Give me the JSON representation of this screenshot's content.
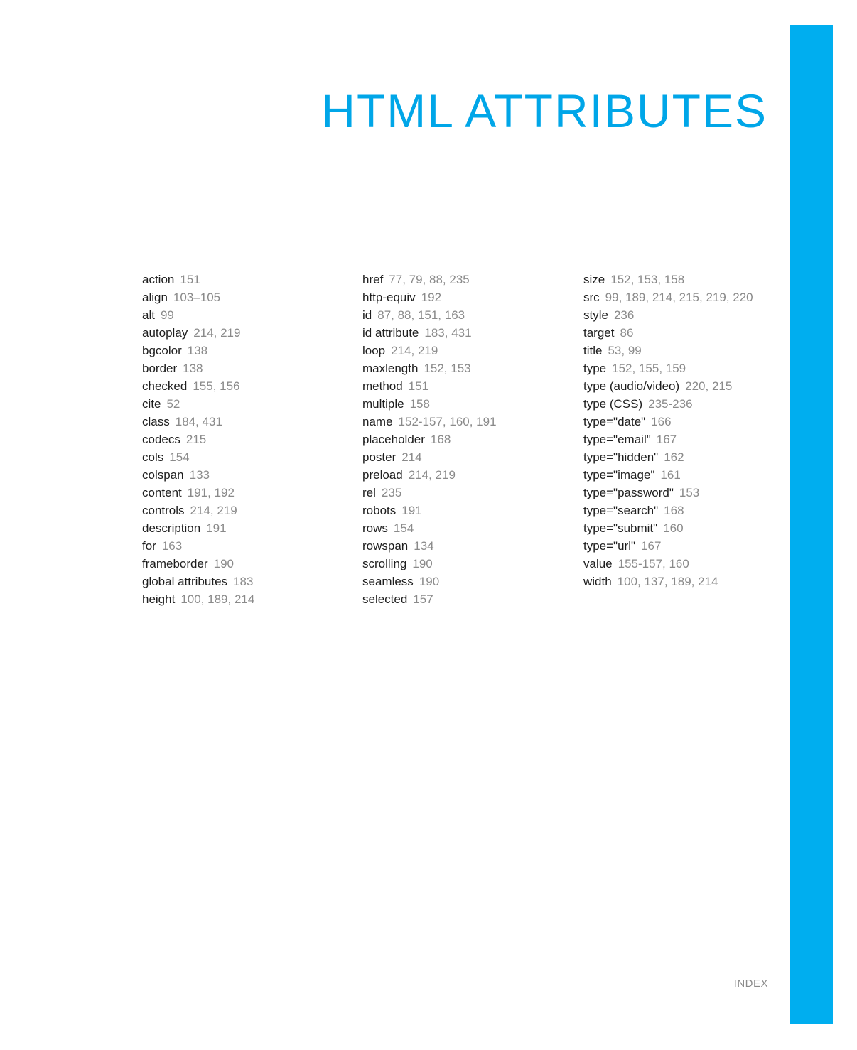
{
  "title": "HTML ATTRIBUTES",
  "footer": "INDEX",
  "colors": {
    "accent": "#00a6e8",
    "bar": "#00aeef",
    "term": "#1e1e1e",
    "pages": "#8a8a8a"
  },
  "columns": [
    [
      {
        "term": "action",
        "pages": "151"
      },
      {
        "term": "align",
        "pages": "103–105"
      },
      {
        "term": "alt",
        "pages": "99"
      },
      {
        "term": "autoplay",
        "pages": "214, 219"
      },
      {
        "term": "bgcolor",
        "pages": "138"
      },
      {
        "term": "border",
        "pages": "138"
      },
      {
        "term": "checked",
        "pages": "155, 156"
      },
      {
        "term": "cite",
        "pages": "52"
      },
      {
        "term": "class",
        "pages": "184, 431"
      },
      {
        "term": "codecs",
        "pages": "215"
      },
      {
        "term": "cols",
        "pages": "154"
      },
      {
        "term": "colspan",
        "pages": "133"
      },
      {
        "term": "content",
        "pages": "191, 192"
      },
      {
        "term": "controls",
        "pages": "214, 219"
      },
      {
        "term": "description",
        "pages": "191"
      },
      {
        "term": "for",
        "pages": "163"
      },
      {
        "term": "frameborder",
        "pages": "190"
      },
      {
        "term": "global attributes",
        "pages": "183"
      },
      {
        "term": "height",
        "pages": "100, 189, 214"
      }
    ],
    [
      {
        "term": "href",
        "pages": "77, 79, 88, 235"
      },
      {
        "term": "http-equiv",
        "pages": "192"
      },
      {
        "term": "id",
        "pages": "87, 88, 151, 163"
      },
      {
        "term": "id attribute",
        "pages": "183, 431"
      },
      {
        "term": "loop",
        "pages": "214, 219"
      },
      {
        "term": "maxlength",
        "pages": "152, 153"
      },
      {
        "term": "method",
        "pages": "151"
      },
      {
        "term": "multiple",
        "pages": "158"
      },
      {
        "term": "name",
        "pages": "152-157, 160, 191"
      },
      {
        "term": "placeholder",
        "pages": "168"
      },
      {
        "term": "poster",
        "pages": "214"
      },
      {
        "term": "preload",
        "pages": "214, 219"
      },
      {
        "term": "rel",
        "pages": "235"
      },
      {
        "term": "robots",
        "pages": "191"
      },
      {
        "term": "rows",
        "pages": "154"
      },
      {
        "term": "rowspan",
        "pages": "134"
      },
      {
        "term": "scrolling",
        "pages": "190"
      },
      {
        "term": "seamless",
        "pages": "190"
      },
      {
        "term": "selected",
        "pages": "157"
      }
    ],
    [
      {
        "term": "size",
        "pages": "152, 153, 158"
      },
      {
        "term": "src",
        "pages": "99, 189, 214, 215, 219, 220"
      },
      {
        "term": "style",
        "pages": "236"
      },
      {
        "term": "target",
        "pages": "86"
      },
      {
        "term": "title",
        "pages": "53, 99"
      },
      {
        "term": "type",
        "pages": "152, 155, 159"
      },
      {
        "term": "type (audio/video)",
        "pages": "220, 215"
      },
      {
        "term": "type (CSS)",
        "pages": "235-236"
      },
      {
        "term": "type=\"date\"",
        "pages": "166"
      },
      {
        "term": "type=\"email\"",
        "pages": "167"
      },
      {
        "term": "type=\"hidden\"",
        "pages": "162"
      },
      {
        "term": "type=\"image\"",
        "pages": "161"
      },
      {
        "term": "type=\"password\"",
        "pages": "153"
      },
      {
        "term": "type=\"search\"",
        "pages": "168"
      },
      {
        "term": "type=\"submit\"",
        "pages": "160"
      },
      {
        "term": "type=\"url\"",
        "pages": "167"
      },
      {
        "term": "value",
        "pages": "155-157, 160"
      },
      {
        "term": "width",
        "pages": "100, 137, 189, 214"
      }
    ]
  ]
}
